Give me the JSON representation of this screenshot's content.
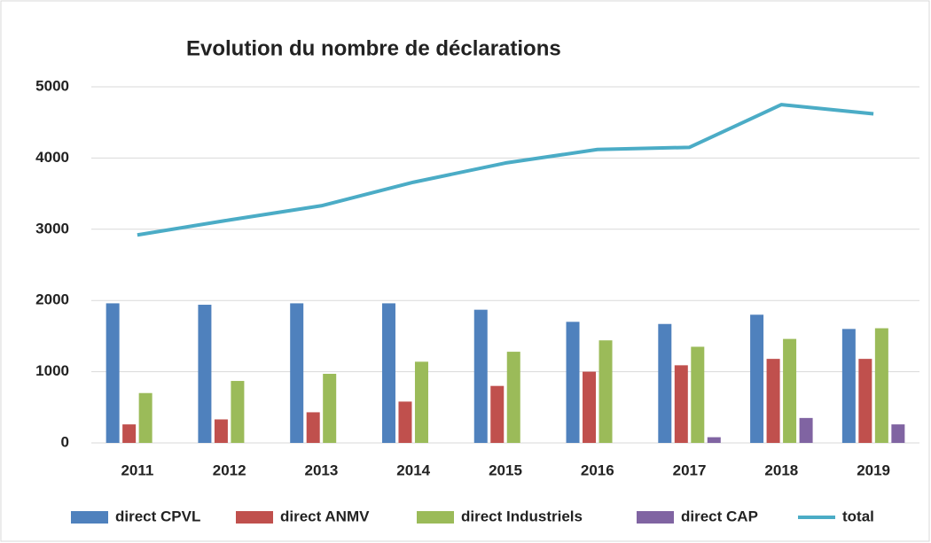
{
  "chart_data": {
    "type": "bar_line",
    "title": "Evolution du nombre de déclarations",
    "categories": [
      "2011",
      "2012",
      "2013",
      "2014",
      "2015",
      "2016",
      "2017",
      "2018",
      "2019"
    ],
    "series": [
      {
        "name": "direct CPVL",
        "type": "bar",
        "color": "#4f81bd",
        "values": [
          1960,
          1940,
          1960,
          1960,
          1870,
          1700,
          1670,
          1800,
          1600
        ]
      },
      {
        "name": "direct ANMV",
        "type": "bar",
        "color": "#c0504d",
        "values": [
          260,
          330,
          430,
          580,
          800,
          1000,
          1090,
          1180,
          1180
        ]
      },
      {
        "name": "direct Industriels",
        "type": "bar",
        "color": "#9bbb59",
        "values": [
          700,
          870,
          970,
          1140,
          1280,
          1440,
          1350,
          1460,
          1610
        ]
      },
      {
        "name": "direct CAP",
        "type": "bar",
        "color": "#8064a2",
        "values": [
          null,
          null,
          null,
          null,
          null,
          null,
          80,
          350,
          260
        ]
      },
      {
        "name": "total",
        "type": "line",
        "color": "#4bacc6",
        "values": [
          2920,
          3130,
          3330,
          3660,
          3930,
          4120,
          4150,
          4750,
          4620
        ]
      }
    ],
    "ylim": [
      0,
      5000
    ],
    "yticks": [
      0,
      1000,
      2000,
      3000,
      4000,
      5000
    ],
    "grid": true,
    "legend": "bottom"
  }
}
